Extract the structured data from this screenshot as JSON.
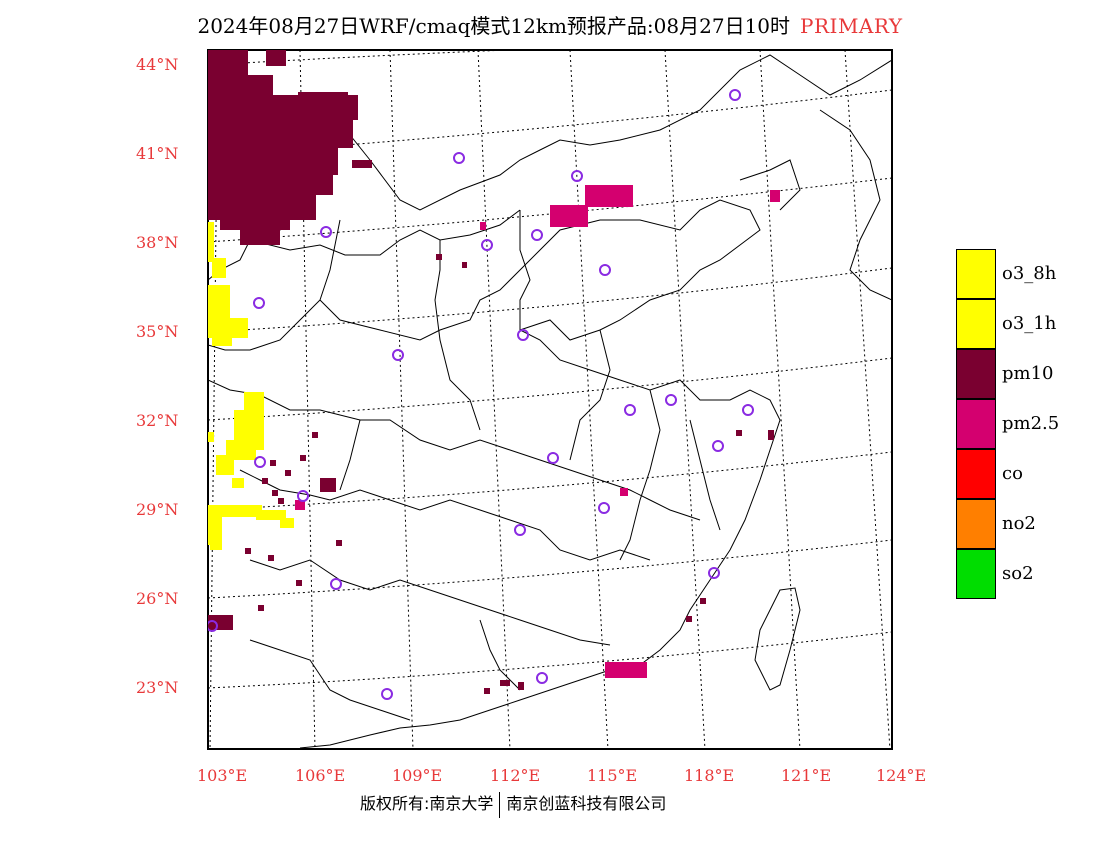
{
  "header": {
    "title": "2024年08月27日WRF/cmaq模式12km预报产品:08月27日10时",
    "mode": "PRIMARY"
  },
  "axes": {
    "lat_labels": [
      "44°N",
      "41°N",
      "38°N",
      "35°N",
      "32°N",
      "29°N",
      "26°N",
      "23°N"
    ],
    "lon_labels": [
      "103°E",
      "106°E",
      "109°E",
      "112°E",
      "115°E",
      "118°E",
      "121°E",
      "124°E"
    ],
    "label_color": "#e8393a"
  },
  "legend": {
    "items": [
      {
        "label": "o3_8h",
        "color": "#ffff00"
      },
      {
        "label": "o3_1h",
        "color": "#ffff00"
      },
      {
        "label": "pm10",
        "color": "#7a0030"
      },
      {
        "label": "pm2.5",
        "color": "#d4006f"
      },
      {
        "label": "co",
        "color": "#ff0000"
      },
      {
        "label": "no2",
        "color": "#ff7f00"
      },
      {
        "label": "so2",
        "color": "#00dd00"
      }
    ]
  },
  "footer": {
    "left": "版权所有:南京大学",
    "right": "南京创蓝科技有限公司"
  },
  "colors": {
    "pm10": "#7a0030",
    "pm25": "#d4006f",
    "o3": "#ffff00",
    "station": "#8a2be2"
  }
}
